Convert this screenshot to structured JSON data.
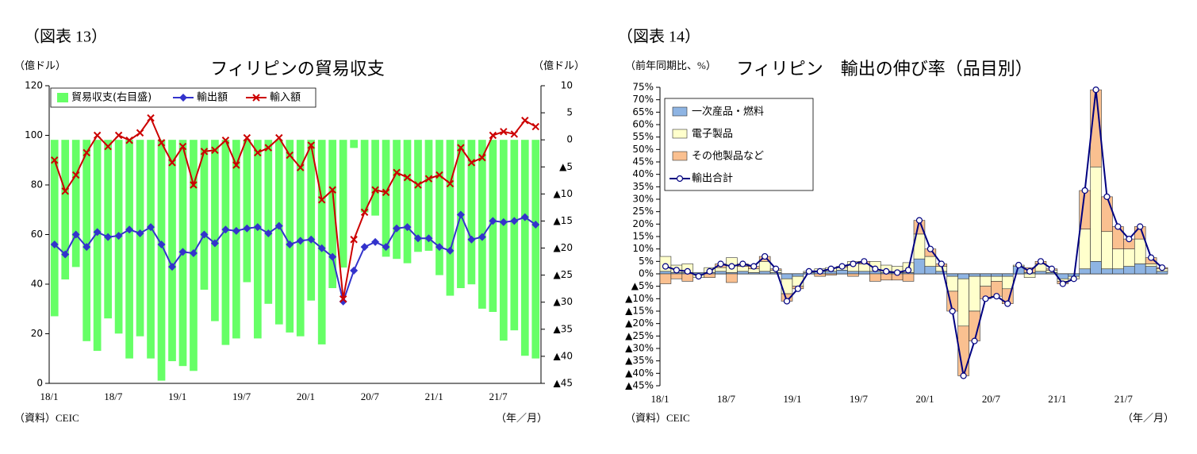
{
  "chart_data": [
    {
      "type": "combo",
      "figure_label": "（図表 13）",
      "title": "フィリピンの貿易収支",
      "y_unit": "（億ドル）",
      "y2_unit": "（億ドル）",
      "x_unit": "（年／月）",
      "source": "（資料）CEIC",
      "legend": "top-left",
      "categories": [
        "18/1",
        null,
        null,
        null,
        null,
        null,
        "18/7",
        null,
        null,
        null,
        null,
        null,
        "19/1",
        null,
        null,
        null,
        null,
        null,
        "19/7",
        null,
        null,
        null,
        null,
        null,
        "20/1",
        null,
        null,
        null,
        null,
        null,
        "20/7",
        null,
        null,
        null,
        null,
        null,
        "21/1",
        null,
        null,
        null,
        null,
        null,
        "21/7",
        null,
        null,
        null
      ],
      "ylim": [
        0,
        120
      ],
      "yticks": [
        0,
        20,
        40,
        60,
        80,
        100,
        120
      ],
      "y2lim": [
        -45,
        10
      ],
      "y2ticks": [
        10,
        5,
        0,
        {
          "value": -5,
          "label": "▲5"
        },
        {
          "value": -10,
          "label": "▲10"
        },
        {
          "value": -15,
          "label": "▲15"
        },
        {
          "value": -20,
          "label": "▲20"
        },
        {
          "value": -25,
          "label": "▲25"
        },
        {
          "value": -30,
          "label": "▲30"
        },
        {
          "value": -35,
          "label": "▲35"
        },
        {
          "value": -40,
          "label": "▲40"
        },
        {
          "value": -45,
          "label": "▲45"
        }
      ],
      "series": [
        {
          "name": "貿易収支(右目盛)",
          "type": "bar",
          "axis": "y2",
          "color": "#66ff66",
          "values": [
            -32.6,
            -25.8,
            -23.5,
            -37.2,
            -39,
            -33,
            -35.8,
            -40.4,
            -36.3,
            -40.4,
            -44.5,
            -40.9,
            -41.8,
            -42.7,
            -27.7,
            -33.5,
            -37.9,
            -36.7,
            -26.3,
            -36.7,
            -30.3,
            -34.1,
            -35.6,
            -36.3,
            -29.7,
            -37.8,
            -27.4,
            -23.6,
            -1.5,
            -13.4,
            -14,
            -21.6,
            -22,
            -22.8,
            -20.7,
            -20.5,
            -25,
            -28.8,
            -27.4,
            -26.7,
            -31.2,
            -31.8,
            -37.1,
            -35.2,
            -39.9,
            -40.4
          ]
        },
        {
          "name": "輸出額",
          "type": "line",
          "marker": "diamond",
          "color": "#3333cc",
          "values": [
            56,
            52,
            60,
            55,
            61,
            59,
            59.5,
            62,
            60.5,
            63,
            56,
            47,
            53,
            52.5,
            60,
            56.5,
            62,
            61.5,
            62.5,
            63,
            60.5,
            63.5,
            56,
            57.5,
            58,
            54.5,
            51,
            33,
            45.5,
            55,
            57,
            55,
            62.5,
            63,
            58.5,
            58.5,
            55,
            53.5,
            68,
            58,
            59,
            65.5,
            65,
            65.5,
            67,
            64
          ]
        },
        {
          "name": "輸入額",
          "type": "line",
          "marker": "x",
          "color": "#cc0000",
          "values": [
            90,
            77.5,
            84,
            93,
            100,
            95.5,
            100,
            98,
            101,
            107,
            97,
            89,
            95.5,
            80,
            93.5,
            94,
            98,
            88,
            99,
            93,
            95,
            99,
            92,
            87,
            96,
            74,
            78,
            34,
            58,
            69,
            78,
            77,
            85,
            83,
            80,
            82.5,
            84,
            80.5,
            95,
            89,
            91,
            100,
            101.5,
            100.5,
            106,
            103.5
          ]
        }
      ]
    },
    {
      "type": "combo",
      "stacked": true,
      "figure_label": "（図表 14）",
      "title": "フィリピン　輸出の伸び率（品目別）",
      "y_unit": "（前年同期比、%）",
      "x_unit": "（年／月）",
      "source": "（資料）CEIC",
      "legend": "top-left",
      "categories": [
        "18/1",
        null,
        null,
        null,
        null,
        null,
        "18/7",
        null,
        null,
        null,
        null,
        null,
        "19/1",
        null,
        null,
        null,
        null,
        null,
        "19/7",
        null,
        null,
        null,
        null,
        null,
        "20/1",
        null,
        null,
        null,
        null,
        null,
        "20/7",
        null,
        null,
        null,
        null,
        null,
        "21/1",
        null,
        null,
        null,
        null,
        null,
        "21/7",
        null,
        null,
        null
      ],
      "ylim": [
        -45,
        75
      ],
      "yticks": [
        {
          "value": 75,
          "label": "75%"
        },
        {
          "value": 70,
          "label": "70%"
        },
        {
          "value": 65,
          "label": "65%"
        },
        {
          "value": 60,
          "label": "60%"
        },
        {
          "value": 55,
          "label": "55%"
        },
        {
          "value": 50,
          "label": "50%"
        },
        {
          "value": 45,
          "label": "45%"
        },
        {
          "value": 40,
          "label": "40%"
        },
        {
          "value": 35,
          "label": "35%"
        },
        {
          "value": 30,
          "label": "30%"
        },
        {
          "value": 25,
          "label": "25%"
        },
        {
          "value": 20,
          "label": "20%"
        },
        {
          "value": 15,
          "label": "15%"
        },
        {
          "value": 10,
          "label": "10%"
        },
        {
          "value": 5,
          "label": "5%"
        },
        {
          "value": 0,
          "label": "0%"
        },
        {
          "value": -5,
          "label": "▲5%"
        },
        {
          "value": -10,
          "label": "▲10%"
        },
        {
          "value": -15,
          "label": "▲15%"
        },
        {
          "value": -20,
          "label": "▲20%"
        },
        {
          "value": -25,
          "label": "▲25%"
        },
        {
          "value": -30,
          "label": "▲30%"
        },
        {
          "value": -35,
          "label": "▲35%"
        },
        {
          "value": -40,
          "label": "▲40%"
        },
        {
          "value": -45,
          "label": "▲45%"
        }
      ],
      "series": [
        {
          "name": "一次産品・燃料",
          "type": "bar",
          "color": "#8eb4e3",
          "values": [
            1,
            0.5,
            0.5,
            0.5,
            0.5,
            1,
            0.5,
            1,
            0.5,
            1,
            0.5,
            -2,
            -1,
            0.5,
            1,
            1,
            1.5,
            1,
            1,
            1,
            0.5,
            0.5,
            0.5,
            6,
            3,
            1,
            -1,
            -2,
            -1,
            -1,
            -1,
            -1,
            3,
            0.5,
            1,
            0.5,
            -2,
            -1,
            2,
            5,
            2,
            2,
            3,
            4,
            3,
            1
          ]
        },
        {
          "name": "電子製品",
          "type": "bar",
          "color": "#ffffcc",
          "values": [
            6,
            3,
            3.5,
            -1.5,
            2,
            1.5,
            6,
            2,
            1.5,
            4,
            1,
            -6,
            -4,
            0.5,
            1,
            1.5,
            1,
            4,
            3,
            4,
            3,
            2.5,
            4,
            10,
            4,
            2,
            -6,
            -19,
            -14,
            -4,
            -2,
            -5,
            0.5,
            -1.5,
            3,
            1,
            -1,
            -1,
            16,
            38,
            15,
            8,
            7,
            10,
            1,
            1
          ]
        },
        {
          "name": "その他製品など",
          "type": "bar",
          "color": "#fac090",
          "values": [
            -4,
            -2,
            -3,
            0,
            -1.5,
            1.5,
            -3.5,
            1,
            1,
            2,
            0.5,
            -3,
            -1,
            0,
            -1,
            -0.5,
            0.5,
            -1,
            1,
            -3,
            -2.5,
            -2.5,
            -3,
            5.5,
            3,
            1,
            -8,
            -20,
            -12,
            -5,
            -6,
            -6,
            0,
            2,
            1,
            0.5,
            -1,
            0,
            15.5,
            31,
            14,
            9,
            4,
            5,
            2.5,
            0.5
          ]
        },
        {
          "name": "輸出合計",
          "type": "line",
          "marker": "circle",
          "color": "#000080",
          "values": [
            3,
            1.5,
            1,
            -1,
            1,
            4,
            3,
            4,
            3,
            7,
            2,
            -11,
            -6,
            1,
            1,
            2,
            3,
            4,
            5,
            2,
            1,
            0.5,
            1.5,
            21.5,
            10,
            4,
            -15,
            -41,
            -27,
            -10,
            -9,
            -12,
            3.5,
            1,
            5,
            2,
            -4,
            -2,
            33.5,
            74,
            31,
            19,
            14,
            19,
            6.5,
            2.5
          ]
        }
      ]
    }
  ]
}
